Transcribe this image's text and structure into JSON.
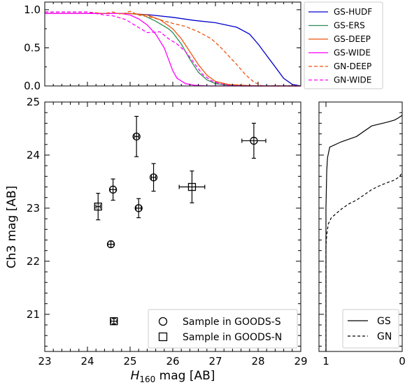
{
  "chart_data": [
    {
      "id": "completeness",
      "type": "line",
      "title": "",
      "xlabel": "",
      "ylabel": "",
      "xlim": [
        23,
        29
      ],
      "ylim": [
        0,
        1.1
      ],
      "yticks": [
        "0.0",
        "0.5",
        "1.0"
      ],
      "legend": "right-outside",
      "series": [
        {
          "name": "GS-HUDF",
          "color": "#0000cc",
          "dash": "",
          "x": [
            23,
            25.0,
            25.5,
            26.0,
            26.5,
            27.0,
            27.5,
            27.8,
            28.0,
            28.2,
            28.4,
            28.6,
            28.8,
            29.0
          ],
          "y": [
            0.95,
            0.95,
            0.93,
            0.9,
            0.86,
            0.83,
            0.77,
            0.68,
            0.55,
            0.4,
            0.25,
            0.1,
            0.02,
            0.0
          ]
        },
        {
          "name": "GS-ERS",
          "color": "#2e8b57",
          "dash": "",
          "x": [
            23,
            25.0,
            25.3,
            25.6,
            25.9,
            26.0,
            26.2,
            26.4,
            26.6,
            26.8,
            27.0,
            27.3,
            27.6,
            29.0
          ],
          "y": [
            0.95,
            0.95,
            0.93,
            0.85,
            0.75,
            0.7,
            0.55,
            0.35,
            0.18,
            0.08,
            0.03,
            0.01,
            0.0,
            0.0
          ]
        },
        {
          "name": "GS-DEEP",
          "color": "#ee5511",
          "dash": "",
          "x": [
            23,
            25.0,
            25.4,
            25.7,
            26.0,
            26.2,
            26.4,
            26.6,
            26.8,
            27.0,
            27.3,
            27.6,
            28.0,
            29.0
          ],
          "y": [
            0.95,
            0.95,
            0.93,
            0.87,
            0.75,
            0.62,
            0.45,
            0.28,
            0.14,
            0.06,
            0.02,
            0.01,
            0.0,
            0.0
          ]
        },
        {
          "name": "GS-WIDE",
          "color": "#ff00ff",
          "dash": "",
          "x": [
            23,
            24.8,
            25.0,
            25.2,
            25.4,
            25.6,
            25.8,
            25.9,
            26.0,
            26.1,
            26.3,
            26.5,
            26.8,
            29.0
          ],
          "y": [
            0.95,
            0.95,
            0.93,
            0.88,
            0.8,
            0.68,
            0.5,
            0.35,
            0.2,
            0.1,
            0.03,
            0.01,
            0.0,
            0.0
          ]
        },
        {
          "name": "GN-DEEP",
          "color": "#ee5511",
          "dash": "5,3",
          "x": [
            23,
            24.0,
            24.4,
            24.6,
            24.8,
            25.0,
            25.2,
            25.5,
            26.0,
            26.3,
            26.6,
            26.9,
            27.1,
            27.3,
            27.5,
            27.7,
            27.9,
            28.1,
            29.0
          ],
          "y": [
            0.97,
            0.97,
            0.95,
            0.97,
            0.94,
            0.98,
            0.93,
            0.9,
            0.82,
            0.78,
            0.71,
            0.62,
            0.52,
            0.4,
            0.28,
            0.15,
            0.05,
            0.0,
            0.0
          ]
        },
        {
          "name": "GN-WIDE",
          "color": "#ff00ff",
          "dash": "5,3",
          "x": [
            23,
            24.0,
            24.4,
            24.6,
            24.9,
            25.1,
            25.4,
            25.7,
            25.9,
            26.1,
            26.3,
            26.5,
            26.7,
            26.9,
            27.1,
            27.3,
            27.6,
            29.0
          ],
          "y": [
            0.97,
            0.97,
            0.93,
            0.92,
            0.87,
            0.8,
            0.7,
            0.71,
            0.62,
            0.55,
            0.45,
            0.3,
            0.15,
            0.07,
            0.03,
            0.01,
            0.0,
            0.0
          ]
        }
      ]
    },
    {
      "id": "scatter",
      "type": "scatter",
      "title": "",
      "xlabel_main": "H",
      "xlabel_sub": "160",
      "xlabel_rest": " mag [AB]",
      "ylabel": "Ch3 mag [AB]",
      "xlim": [
        23,
        29
      ],
      "ylim": [
        20.3,
        25
      ],
      "xticks": [
        "23",
        "24",
        "25",
        "26",
        "27",
        "28",
        "29"
      ],
      "yticks": [
        "21",
        "22",
        "23",
        "24",
        "25"
      ],
      "legend": "lower-right",
      "series": [
        {
          "name": "Sample in GOODS-S",
          "marker": "circle",
          "points": [
            {
              "x": 24.6,
              "y": 23.35,
              "xerr": 0.07,
              "yerr": 0.2
            },
            {
              "x": 24.55,
              "y": 22.32,
              "xerr": 0.07,
              "yerr": 0.06
            },
            {
              "x": 25.15,
              "y": 24.35,
              "xerr": 0.05,
              "yerr": 0.38
            },
            {
              "x": 25.2,
              "y": 23.0,
              "xerr": 0.06,
              "yerr": 0.18
            },
            {
              "x": 25.55,
              "y": 23.58,
              "xerr": 0.05,
              "yerr": 0.26
            },
            {
              "x": 27.9,
              "y": 24.27,
              "xerr": 0.28,
              "yerr": 0.33
            }
          ]
        },
        {
          "name": "Sample in GOODS-N",
          "marker": "square",
          "points": [
            {
              "x": 24.25,
              "y": 23.03,
              "xerr": 0.05,
              "yerr": 0.25
            },
            {
              "x": 24.62,
              "y": 20.87,
              "xerr": 0.07,
              "yerr": 0.05
            },
            {
              "x": 26.45,
              "y": 23.4,
              "xerr": 0.3,
              "yerr": 0.3
            }
          ]
        }
      ]
    },
    {
      "id": "completeness-ch3",
      "type": "line",
      "title": "",
      "xlabel": "",
      "ylabel": "",
      "xlim": [
        1,
        0
      ],
      "ylim": [
        20.3,
        25
      ],
      "xticks": [
        "1",
        "0"
      ],
      "legend": "lower-right",
      "series": [
        {
          "name": "GS",
          "dash": "",
          "x": [
            1.0,
            1.0,
            0.99,
            0.98,
            0.95,
            0.8,
            0.6,
            0.4,
            0.2,
            0.1,
            0.05,
            0.0
          ],
          "y": [
            20.3,
            23.0,
            23.7,
            23.95,
            24.15,
            24.25,
            24.35,
            24.55,
            24.62,
            24.66,
            24.7,
            24.75
          ]
        },
        {
          "name": "GN",
          "dash": "4,3",
          "x": [
            1.0,
            1.0,
            0.99,
            0.97,
            0.93,
            0.88,
            0.8,
            0.7,
            0.6,
            0.5,
            0.4,
            0.3,
            0.2,
            0.1,
            0.03,
            0.0
          ],
          "y": [
            20.3,
            22.3,
            22.5,
            22.7,
            22.82,
            22.88,
            22.98,
            23.08,
            23.15,
            23.25,
            23.35,
            23.42,
            23.48,
            23.53,
            23.6,
            23.68
          ]
        }
      ]
    }
  ]
}
